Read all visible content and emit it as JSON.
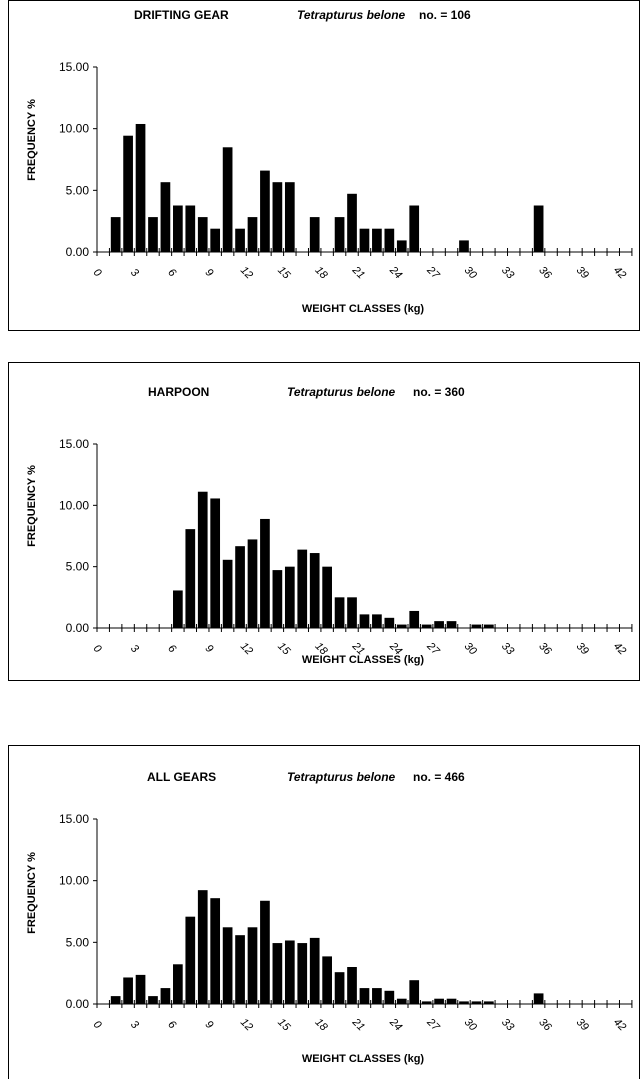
{
  "chart_data": [
    {
      "type": "bar",
      "title_gear": "DRIFTING GEAR",
      "title_species": "Tetrapturus belone",
      "title_count": "no. = 106",
      "xlabel": "WEIGHT CLASSES  (kg)",
      "ylabel": "FREQUENCY %",
      "ylim": [
        0,
        15
      ],
      "yticks": [
        "0.00",
        "5.00",
        "10.00",
        "15.00"
      ],
      "xticks": [
        "0",
        "3",
        "6",
        "9",
        "12",
        "15",
        "18",
        "21",
        "24",
        "27",
        "30",
        "33",
        "36",
        "39",
        "42"
      ],
      "x": [
        2,
        3,
        4,
        5,
        6,
        7,
        8,
        9,
        10,
        11,
        12,
        13,
        14,
        15,
        16,
        18,
        20,
        21,
        22,
        23,
        24,
        25,
        26,
        30,
        36
      ],
      "values": [
        2.83,
        9.43,
        10.38,
        2.83,
        5.66,
        3.77,
        3.77,
        2.83,
        1.89,
        8.49,
        1.89,
        2.83,
        6.6,
        5.66,
        5.66,
        2.83,
        2.83,
        4.72,
        1.89,
        1.89,
        1.89,
        0.94,
        3.77,
        0.94,
        3.77
      ]
    },
    {
      "type": "bar",
      "title_gear": "HARPOON",
      "title_species": "Tetrapturus belone",
      "title_count": "no. = 360",
      "xlabel": "WEIGHT CLASSES  (kg)",
      "ylabel": "FREQUENCY %",
      "ylim": [
        0,
        15
      ],
      "yticks": [
        "0.00",
        "5.00",
        "10.00",
        "15.00"
      ],
      "xticks": [
        "0",
        "3",
        "6",
        "9",
        "12",
        "15",
        "18",
        "21",
        "24",
        "27",
        "30",
        "33",
        "36",
        "39",
        "42"
      ],
      "x": [
        7,
        8,
        9,
        10,
        11,
        12,
        13,
        14,
        15,
        16,
        17,
        18,
        19,
        20,
        21,
        22,
        23,
        24,
        25,
        26,
        27,
        28,
        29,
        31,
        32
      ],
      "values": [
        3.06,
        8.06,
        11.11,
        10.56,
        5.56,
        6.67,
        7.22,
        8.89,
        4.72,
        5.0,
        6.39,
        6.11,
        5.0,
        2.5,
        2.5,
        1.11,
        1.11,
        0.83,
        0.28,
        1.39,
        0.28,
        0.56,
        0.56,
        0.28,
        0.28
      ]
    },
    {
      "type": "bar",
      "title_gear": "ALL GEARS",
      "title_species": "Tetrapturus belone",
      "title_count": "no. = 466",
      "xlabel": "WEIGHT CLASSES (kg)",
      "ylabel": "FREQUENCY %",
      "ylim": [
        0,
        15
      ],
      "yticks": [
        "0.00",
        "5.00",
        "10.00",
        "15.00"
      ],
      "xticks": [
        "0",
        "3",
        "6",
        "9",
        "12",
        "15",
        "18",
        "21",
        "24",
        "27",
        "30",
        "33",
        "36",
        "39",
        "42"
      ],
      "x": [
        2,
        3,
        4,
        5,
        6,
        7,
        8,
        9,
        10,
        11,
        12,
        13,
        14,
        15,
        16,
        17,
        18,
        19,
        20,
        21,
        22,
        23,
        24,
        25,
        26,
        27,
        28,
        29,
        30,
        31,
        32,
        36
      ],
      "values": [
        0.64,
        2.15,
        2.36,
        0.64,
        1.29,
        3.22,
        7.08,
        9.23,
        8.58,
        6.22,
        5.58,
        6.22,
        8.37,
        4.94,
        5.15,
        4.94,
        5.36,
        3.86,
        2.58,
        3.0,
        1.29,
        1.29,
        1.07,
        0.43,
        1.93,
        0.21,
        0.43,
        0.43,
        0.21,
        0.21,
        0.21,
        0.86
      ]
    }
  ]
}
